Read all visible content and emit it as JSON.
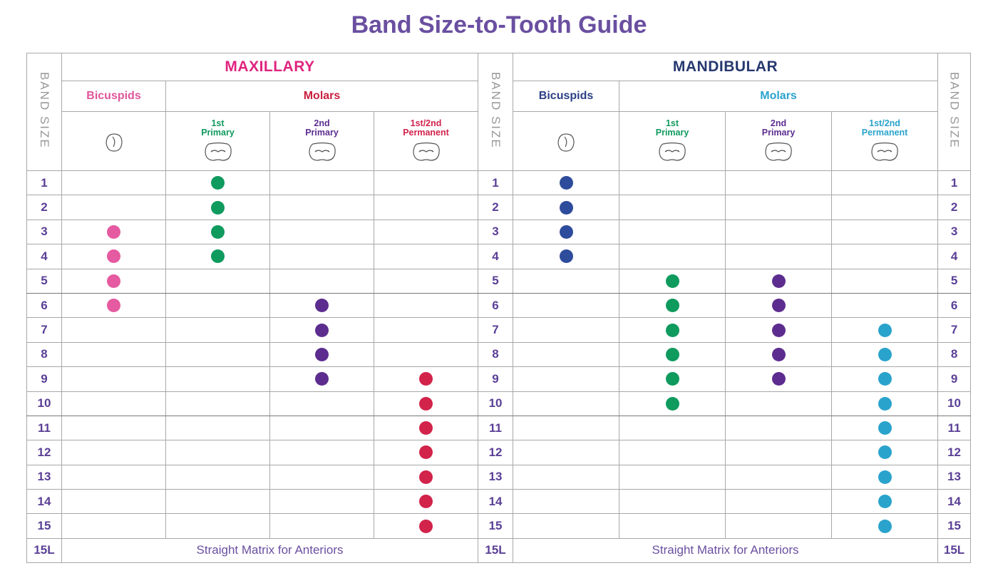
{
  "title": "Band Size-to-Tooth Guide",
  "band_size_label": "BAND SIZE",
  "sections": [
    {
      "name": "MAXILLARY",
      "color": "#e0257f",
      "footer": "Straight Matrix for Anteriors",
      "groups": [
        {
          "name": "Bicuspids",
          "color": "#e0559a",
          "columns": [
            {
              "color": "#e55aa0"
            }
          ]
        },
        {
          "name": "Molars",
          "color": "#c8203f",
          "columns": [
            {
              "label": "1st\nPrimary",
              "color": "#0f9a5e"
            },
            {
              "label": "2nd\nPrimary",
              "color": "#5c2d8f"
            },
            {
              "label": "1st/2nd\nPermanent",
              "color": "#d2234b"
            }
          ]
        }
      ]
    },
    {
      "name": "MANDIBULAR",
      "color": "#26386f",
      "footer": "Straight Matrix for Anteriors",
      "groups": [
        {
          "name": "Bicuspids",
          "color": "#2b3f85",
          "columns": [
            {
              "color": "#2e4c9c"
            }
          ]
        },
        {
          "name": "Molars",
          "color": "#2aa3cc",
          "columns": [
            {
              "label": "1st\nPrimary",
              "color": "#0f9a5e"
            },
            {
              "label": "2nd\nPrimary",
              "color": "#5c2d8f"
            },
            {
              "label": "1st/2nd\nPermanent",
              "color": "#2aa3cc"
            }
          ]
        }
      ]
    }
  ],
  "rows": [
    {
      "size": "1",
      "dots": [
        [
          false,
          true,
          false,
          false
        ],
        [
          true,
          false,
          false,
          false
        ]
      ]
    },
    {
      "size": "2",
      "dots": [
        [
          false,
          true,
          false,
          false
        ],
        [
          true,
          false,
          false,
          false
        ]
      ]
    },
    {
      "size": "3",
      "dots": [
        [
          true,
          true,
          false,
          false
        ],
        [
          true,
          false,
          false,
          false
        ]
      ]
    },
    {
      "size": "4",
      "dots": [
        [
          true,
          true,
          false,
          false
        ],
        [
          true,
          false,
          false,
          false
        ]
      ]
    },
    {
      "size": "5",
      "dots": [
        [
          true,
          false,
          false,
          false
        ],
        [
          false,
          true,
          true,
          false
        ]
      ]
    },
    {
      "size": "6",
      "dots": [
        [
          true,
          false,
          true,
          false
        ],
        [
          false,
          true,
          true,
          false
        ]
      ]
    },
    {
      "size": "7",
      "dots": [
        [
          false,
          false,
          true,
          false
        ],
        [
          false,
          true,
          true,
          true
        ]
      ]
    },
    {
      "size": "8",
      "dots": [
        [
          false,
          false,
          true,
          false
        ],
        [
          false,
          true,
          true,
          true
        ]
      ]
    },
    {
      "size": "9",
      "dots": [
        [
          false,
          false,
          true,
          true
        ],
        [
          false,
          true,
          true,
          true
        ]
      ]
    },
    {
      "size": "10",
      "dots": [
        [
          false,
          false,
          false,
          true
        ],
        [
          false,
          true,
          false,
          true
        ]
      ]
    },
    {
      "size": "11",
      "dots": [
        [
          false,
          false,
          false,
          true
        ],
        [
          false,
          false,
          false,
          true
        ]
      ]
    },
    {
      "size": "12",
      "dots": [
        [
          false,
          false,
          false,
          true
        ],
        [
          false,
          false,
          false,
          true
        ]
      ]
    },
    {
      "size": "13",
      "dots": [
        [
          false,
          false,
          false,
          true
        ],
        [
          false,
          false,
          false,
          true
        ]
      ]
    },
    {
      "size": "14",
      "dots": [
        [
          false,
          false,
          false,
          true
        ],
        [
          false,
          false,
          false,
          true
        ]
      ]
    },
    {
      "size": "15",
      "dots": [
        [
          false,
          false,
          false,
          true
        ],
        [
          false,
          false,
          false,
          true
        ]
      ]
    }
  ],
  "footer_size": "15L"
}
